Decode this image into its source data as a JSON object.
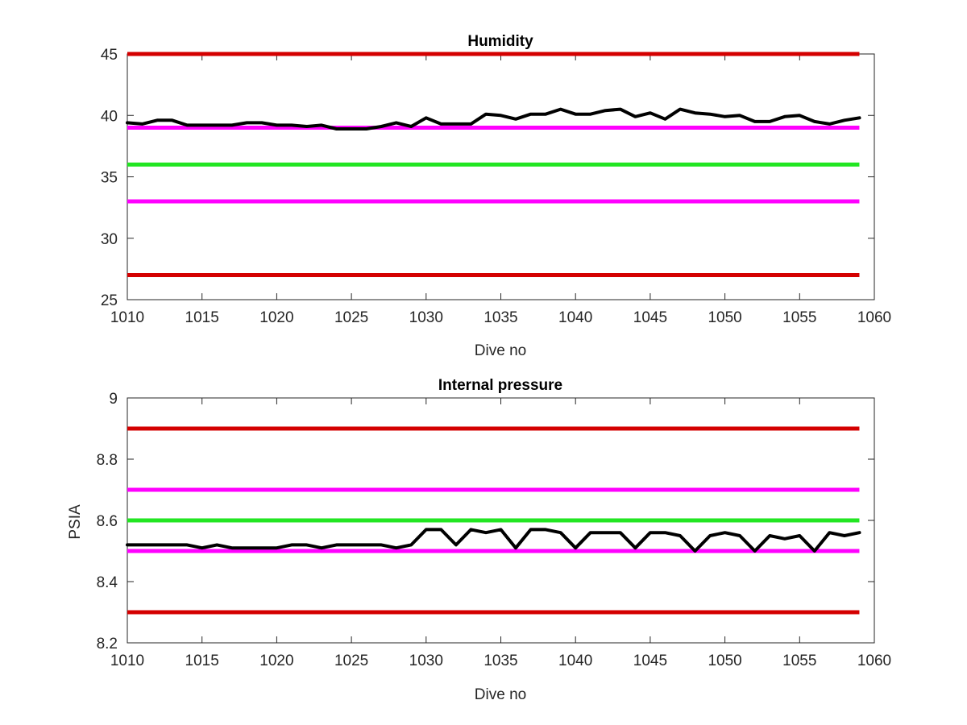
{
  "chart_data": [
    {
      "type": "line",
      "title": "Humidity",
      "xlabel": "Dive no",
      "ylabel": "",
      "xlim": [
        1010,
        1060
      ],
      "ylim": [
        25,
        45
      ],
      "x_ticks": [
        1010,
        1015,
        1020,
        1025,
        1030,
        1035,
        1040,
        1045,
        1050,
        1055,
        1060
      ],
      "y_ticks": [
        25,
        30,
        35,
        40,
        45
      ],
      "x_tick_labels": [
        "1010",
        "1015",
        "1020",
        "1025",
        "1030",
        "1035",
        "1040",
        "1045",
        "1050",
        "1055",
        "1060"
      ],
      "y_tick_labels": [
        "25",
        "30",
        "35",
        "40",
        "45"
      ],
      "grid": false,
      "legend": "none",
      "thresholds": [
        {
          "value": 45,
          "color": "#d40000"
        },
        {
          "value": 39,
          "color": "#ff00ff"
        },
        {
          "value": 36,
          "color": "#22e622"
        },
        {
          "value": 33,
          "color": "#ff00ff"
        },
        {
          "value": 27,
          "color": "#d40000"
        }
      ],
      "series": [
        {
          "color": "#000000",
          "x": [
            1010,
            1011,
            1012,
            1013,
            1014,
            1015,
            1016,
            1017,
            1018,
            1019,
            1020,
            1021,
            1022,
            1023,
            1024,
            1025,
            1026,
            1027,
            1028,
            1029,
            1030,
            1031,
            1032,
            1033,
            1034,
            1035,
            1036,
            1037,
            1038,
            1039,
            1040,
            1041,
            1042,
            1043,
            1044,
            1045,
            1046,
            1047,
            1048,
            1049,
            1050,
            1051,
            1052,
            1053,
            1054,
            1055,
            1056,
            1057,
            1058,
            1059
          ],
          "values": [
            39.4,
            39.3,
            39.6,
            39.6,
            39.2,
            39.2,
            39.2,
            39.2,
            39.4,
            39.4,
            39.2,
            39.2,
            39.1,
            39.2,
            38.9,
            38.9,
            38.9,
            39.1,
            39.4,
            39.1,
            39.8,
            39.3,
            39.3,
            39.3,
            40.1,
            40.0,
            39.7,
            40.1,
            40.1,
            40.5,
            40.1,
            40.1,
            40.4,
            40.5,
            39.9,
            40.2,
            39.7,
            40.5,
            40.2,
            40.1,
            39.9,
            40.0,
            39.5,
            39.5,
            39.9,
            40.0,
            39.5,
            39.3,
            39.6,
            39.8
          ]
        }
      ]
    },
    {
      "type": "line",
      "title": "Internal pressure",
      "xlabel": "Dive no",
      "ylabel": "PSIA",
      "xlim": [
        1010,
        1060
      ],
      "ylim": [
        8.2,
        9.0
      ],
      "x_ticks": [
        1010,
        1015,
        1020,
        1025,
        1030,
        1035,
        1040,
        1045,
        1050,
        1055,
        1060
      ],
      "y_ticks": [
        8.2,
        8.4,
        8.6,
        8.8,
        9.0
      ],
      "x_tick_labels": [
        "1010",
        "1015",
        "1020",
        "1025",
        "1030",
        "1035",
        "1040",
        "1045",
        "1050",
        "1055",
        "1060"
      ],
      "y_tick_labels": [
        "8.2",
        "8.4",
        "8.6",
        "8.8",
        "9"
      ],
      "grid": false,
      "legend": "none",
      "thresholds": [
        {
          "value": 8.9,
          "color": "#d40000"
        },
        {
          "value": 8.7,
          "color": "#ff00ff"
        },
        {
          "value": 8.6,
          "color": "#22e622"
        },
        {
          "value": 8.5,
          "color": "#ff00ff"
        },
        {
          "value": 8.3,
          "color": "#d40000"
        }
      ],
      "series": [
        {
          "color": "#000000",
          "x": [
            1010,
            1011,
            1012,
            1013,
            1014,
            1015,
            1016,
            1017,
            1018,
            1019,
            1020,
            1021,
            1022,
            1023,
            1024,
            1025,
            1026,
            1027,
            1028,
            1029,
            1030,
            1031,
            1032,
            1033,
            1034,
            1035,
            1036,
            1037,
            1038,
            1039,
            1040,
            1041,
            1042,
            1043,
            1044,
            1045,
            1046,
            1047,
            1048,
            1049,
            1050,
            1051,
            1052,
            1053,
            1054,
            1055,
            1056,
            1057,
            1058,
            1059
          ],
          "values": [
            8.52,
            8.52,
            8.52,
            8.52,
            8.52,
            8.51,
            8.52,
            8.51,
            8.51,
            8.51,
            8.51,
            8.52,
            8.52,
            8.51,
            8.52,
            8.52,
            8.52,
            8.52,
            8.51,
            8.52,
            8.57,
            8.57,
            8.52,
            8.57,
            8.56,
            8.57,
            8.51,
            8.57,
            8.57,
            8.56,
            8.51,
            8.56,
            8.56,
            8.56,
            8.51,
            8.56,
            8.56,
            8.55,
            8.5,
            8.55,
            8.56,
            8.55,
            8.5,
            8.55,
            8.54,
            8.55,
            8.5,
            8.56,
            8.55,
            8.56
          ]
        }
      ]
    }
  ]
}
